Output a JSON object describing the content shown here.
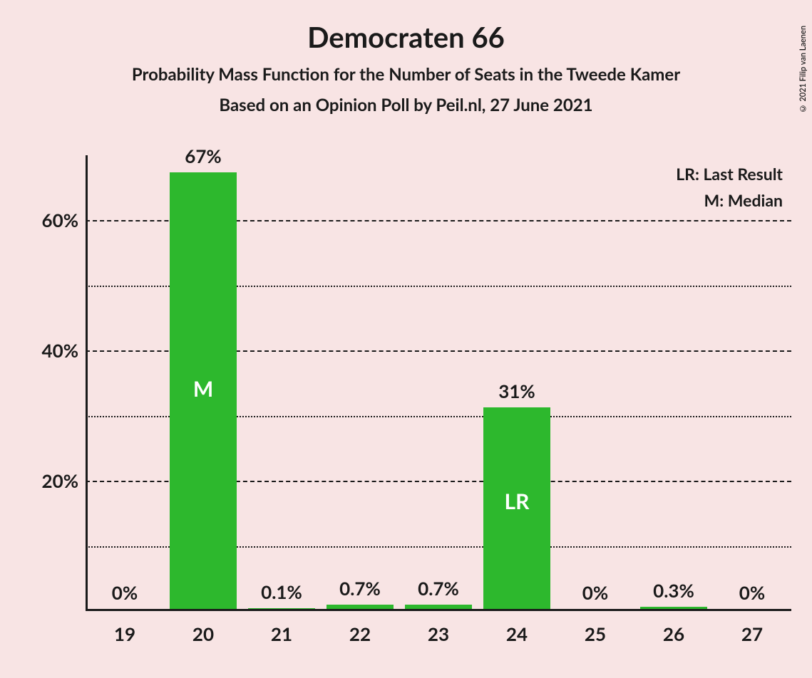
{
  "title": "Democraten 66",
  "subtitle": "Probability Mass Function for the Number of Seats in the Tweede Kamer",
  "subtitle2": "Based on an Opinion Poll by Peil.nl, 27 June 2021",
  "copyright": "© 2021 Filip van Laenen",
  "legend": {
    "lr": "LR: Last Result",
    "m": "M: Median"
  },
  "chart": {
    "type": "bar",
    "background_color": "#f8e4e4",
    "bar_color": "#2db82d",
    "text_color": "#1a1a1a",
    "inner_label_color": "#ffffff",
    "title_fontsize": 40,
    "subtitle_fontsize": 24,
    "axis_label_fontsize": 26,
    "bar_label_fontsize": 26,
    "inner_label_fontsize": 30,
    "bar_width": 0.85,
    "categories": [
      "19",
      "20",
      "21",
      "22",
      "23",
      "24",
      "25",
      "26",
      "27"
    ],
    "values": [
      0,
      67,
      0.1,
      0.7,
      0.7,
      31,
      0,
      0.3,
      0
    ],
    "value_labels": [
      "0%",
      "67%",
      "0.1%",
      "0.7%",
      "0.7%",
      "31%",
      "0%",
      "0.3%",
      "0%"
    ],
    "inner_labels": {
      "1": "M",
      "5": "LR"
    },
    "ylim": [
      0,
      70
    ],
    "y_major_ticks": [
      20,
      40,
      60
    ],
    "y_major_labels": [
      "20%",
      "40%",
      "60%"
    ],
    "y_minor_ticks": [
      10,
      30,
      50
    ]
  }
}
